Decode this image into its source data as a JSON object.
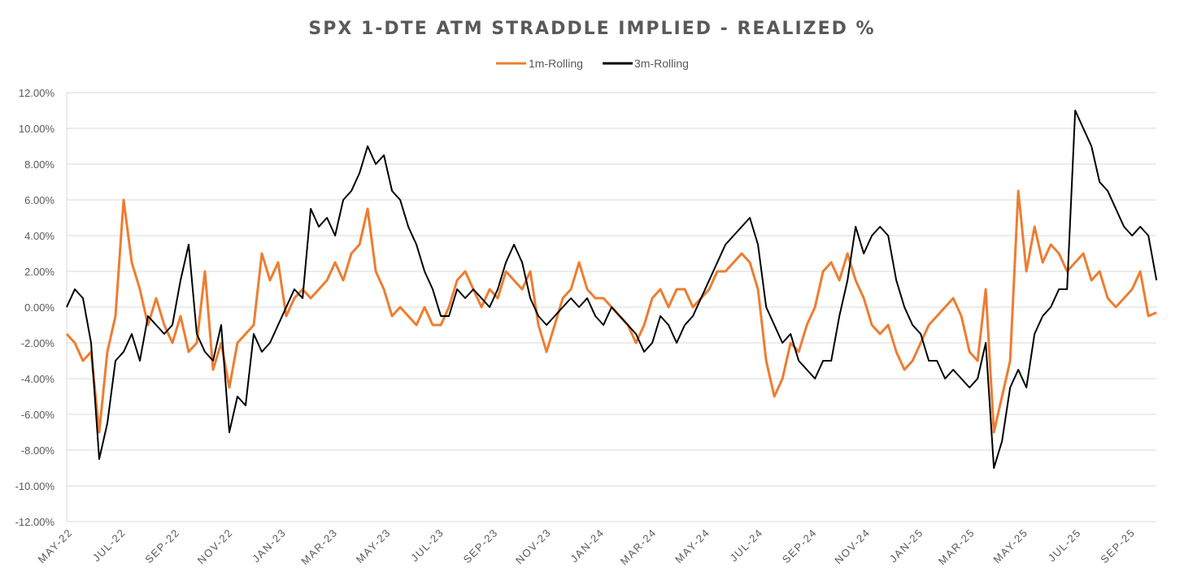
{
  "chart_data": {
    "type": "line",
    "title": "SPX 1-DTE ATM STRADDLE IMPLIED - REALIZED %",
    "xlabel": "",
    "ylabel": "",
    "ylim": [
      -12,
      12
    ],
    "y_step": 2,
    "y_tick_labels": [
      "12.00%",
      "10.00%",
      "8.00%",
      "6.00%",
      "4.00%",
      "2.00%",
      "0.00%",
      "-2.00%",
      "-4.00%",
      "-6.00%",
      "-8.00%",
      "-10.00%",
      "-12.00%"
    ],
    "x_start": "2022-05-01",
    "x_step_days": 9.33,
    "x_range_days": [
      0,
      1250
    ],
    "x_tick_labels": [
      "MAY-22",
      "JUL-22",
      "SEP-22",
      "NOV-22",
      "JAN-23",
      "MAR-23",
      "MAY-23",
      "JUL-23",
      "SEP-23",
      "NOV-23",
      "JAN-24",
      "MAR-24",
      "MAY-24",
      "JUL-24",
      "SEP-24",
      "NOV-24",
      "JAN-25",
      "MAR-25",
      "MAY-25",
      "JUL-25",
      "SEP-25"
    ],
    "x_tick_days": [
      0,
      61,
      123,
      184,
      245,
      304,
      365,
      426,
      488,
      549,
      610,
      670,
      731,
      792,
      854,
      915,
      976,
      1035,
      1096,
      1157,
      1219
    ],
    "grid": true,
    "legend_position": "top-center",
    "series": [
      {
        "name": "1m-Rolling",
        "color": "#ED7D31",
        "values": [
          -1.5,
          -2,
          -3,
          -2.5,
          -7,
          -2.5,
          -0.5,
          6,
          2.5,
          1,
          -1,
          0.5,
          -1,
          -2,
          -0.5,
          -2.5,
          -2,
          2,
          -3.5,
          -2,
          -4.5,
          -2,
          -1.5,
          -1,
          3,
          1.5,
          2.5,
          -0.5,
          0.5,
          1,
          0.5,
          1,
          1.5,
          2.5,
          1.5,
          3,
          3.5,
          5.5,
          2,
          1,
          -0.5,
          0,
          -0.5,
          -1,
          0,
          -1,
          -1,
          0,
          1.5,
          2,
          1,
          0,
          1,
          0.5,
          2,
          1.5,
          1,
          2,
          -1,
          -2.5,
          -1,
          0.5,
          1,
          2.5,
          1,
          0.5,
          0.5,
          0,
          -0.5,
          -1,
          -2,
          -1,
          0.5,
          1,
          0,
          1,
          1,
          0,
          0.5,
          1,
          2,
          2,
          2.5,
          3,
          2.5,
          1,
          -3,
          -5,
          -4,
          -2,
          -2.5,
          -1,
          0,
          2,
          2.5,
          1.5,
          3,
          1.5,
          0.5,
          -1,
          -1.5,
          -1,
          -2.5,
          -3.5,
          -3,
          -2,
          -1,
          -0.5,
          0,
          0.5,
          -0.5,
          -2.5,
          -3,
          1,
          -7,
          -5,
          -3,
          6.5,
          2,
          4.5,
          2.5,
          3.5,
          3,
          2,
          2.5,
          3,
          1.5,
          2,
          0.5,
          0,
          0.5,
          1,
          2,
          -0.5,
          -0.3
        ]
      },
      {
        "name": "3m-Rolling",
        "color": "#000000",
        "values": [
          0,
          1,
          0.5,
          -2,
          -8.5,
          -6.5,
          -3,
          -2.5,
          -1.5,
          -3,
          -0.5,
          -1,
          -1.5,
          -1,
          1.5,
          3.5,
          -1.5,
          -2.5,
          -3,
          -1,
          -7,
          -5,
          -5.5,
          -1.5,
          -2.5,
          -2,
          -1,
          0,
          1,
          0.5,
          5.5,
          4.5,
          5,
          4,
          6,
          6.5,
          7.5,
          9,
          8,
          8.5,
          6.5,
          6,
          4.5,
          3.5,
          2,
          1,
          -0.5,
          -0.5,
          1,
          0.5,
          1,
          0.5,
          0,
          1,
          2.5,
          3.5,
          2.5,
          0.5,
          -0.5,
          -1,
          -0.5,
          0,
          0.5,
          0,
          0.5,
          -0.5,
          -1,
          0,
          -0.5,
          -1,
          -1.5,
          -2.5,
          -2,
          -0.5,
          -1,
          -2,
          -1,
          -0.5,
          0.5,
          1.5,
          2.5,
          3.5,
          4,
          4.5,
          5,
          3.5,
          0,
          -1,
          -2,
          -1.5,
          -3,
          -3.5,
          -4,
          -3,
          -3,
          -0.5,
          1.5,
          4.5,
          3,
          4,
          4.5,
          4,
          1.5,
          0,
          -1,
          -1.5,
          -3,
          -3,
          -4,
          -3.5,
          -4,
          -4.5,
          -4,
          -2,
          -9,
          -7.5,
          -4.5,
          -3.5,
          -4.5,
          -1.5,
          -0.5,
          0,
          1,
          1,
          11,
          10,
          9,
          7,
          6.5,
          5.5,
          4.5,
          4,
          4.5,
          4,
          1.5
        ]
      }
    ]
  }
}
